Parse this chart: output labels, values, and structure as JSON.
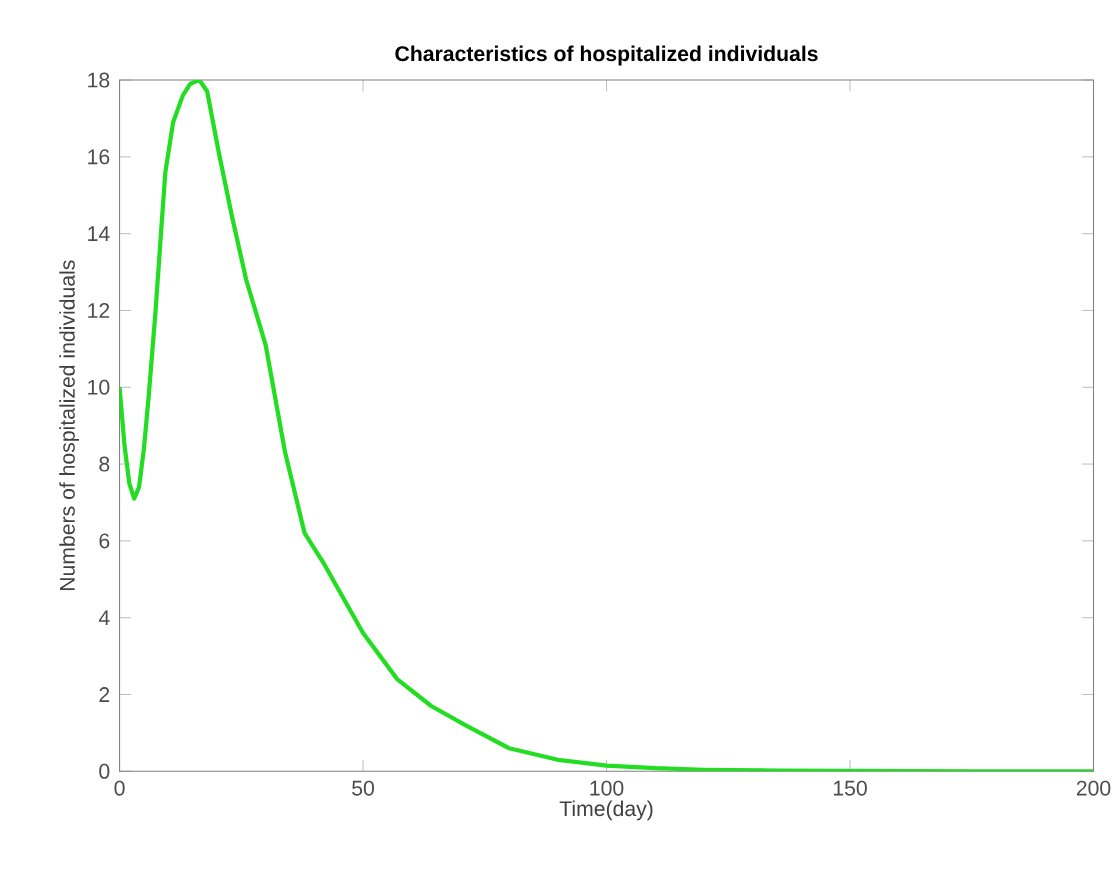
{
  "chart_data": {
    "type": "line",
    "title": "Characteristics of hospitalized individuals",
    "xlabel": "Time(day)",
    "ylabel": "Numbers of hospitalized individuals",
    "xlim": [
      0,
      200
    ],
    "ylim": [
      0,
      18
    ],
    "xticks": [
      0,
      50,
      100,
      150,
      200
    ],
    "yticks": [
      0,
      2,
      4,
      6,
      8,
      10,
      12,
      14,
      16,
      18
    ],
    "grid": false,
    "series": [
      {
        "color": "#22dd22",
        "x": [
          0,
          1,
          2,
          3,
          4,
          5,
          6,
          7.4,
          8.5,
          9.4,
          11,
          13,
          14.5,
          16.4,
          18,
          20.4,
          23,
          26,
          30,
          34,
          38,
          42,
          46,
          50,
          57,
          64,
          71,
          80,
          90,
          100,
          110,
          120,
          135,
          150,
          175,
          200
        ],
        "values": [
          10,
          8.5,
          7.5,
          7.1,
          7.4,
          8.4,
          9.8,
          12,
          14,
          15.6,
          16.9,
          17.6,
          17.9,
          18,
          17.7,
          16.1,
          14.5,
          12.8,
          11.1,
          8.3,
          6.2,
          5.4,
          4.5,
          3.6,
          2.4,
          1.7,
          1.2,
          0.6,
          0.3,
          0.15,
          0.08,
          0.04,
          0.02,
          0.01,
          0,
          0
        ]
      }
    ]
  }
}
